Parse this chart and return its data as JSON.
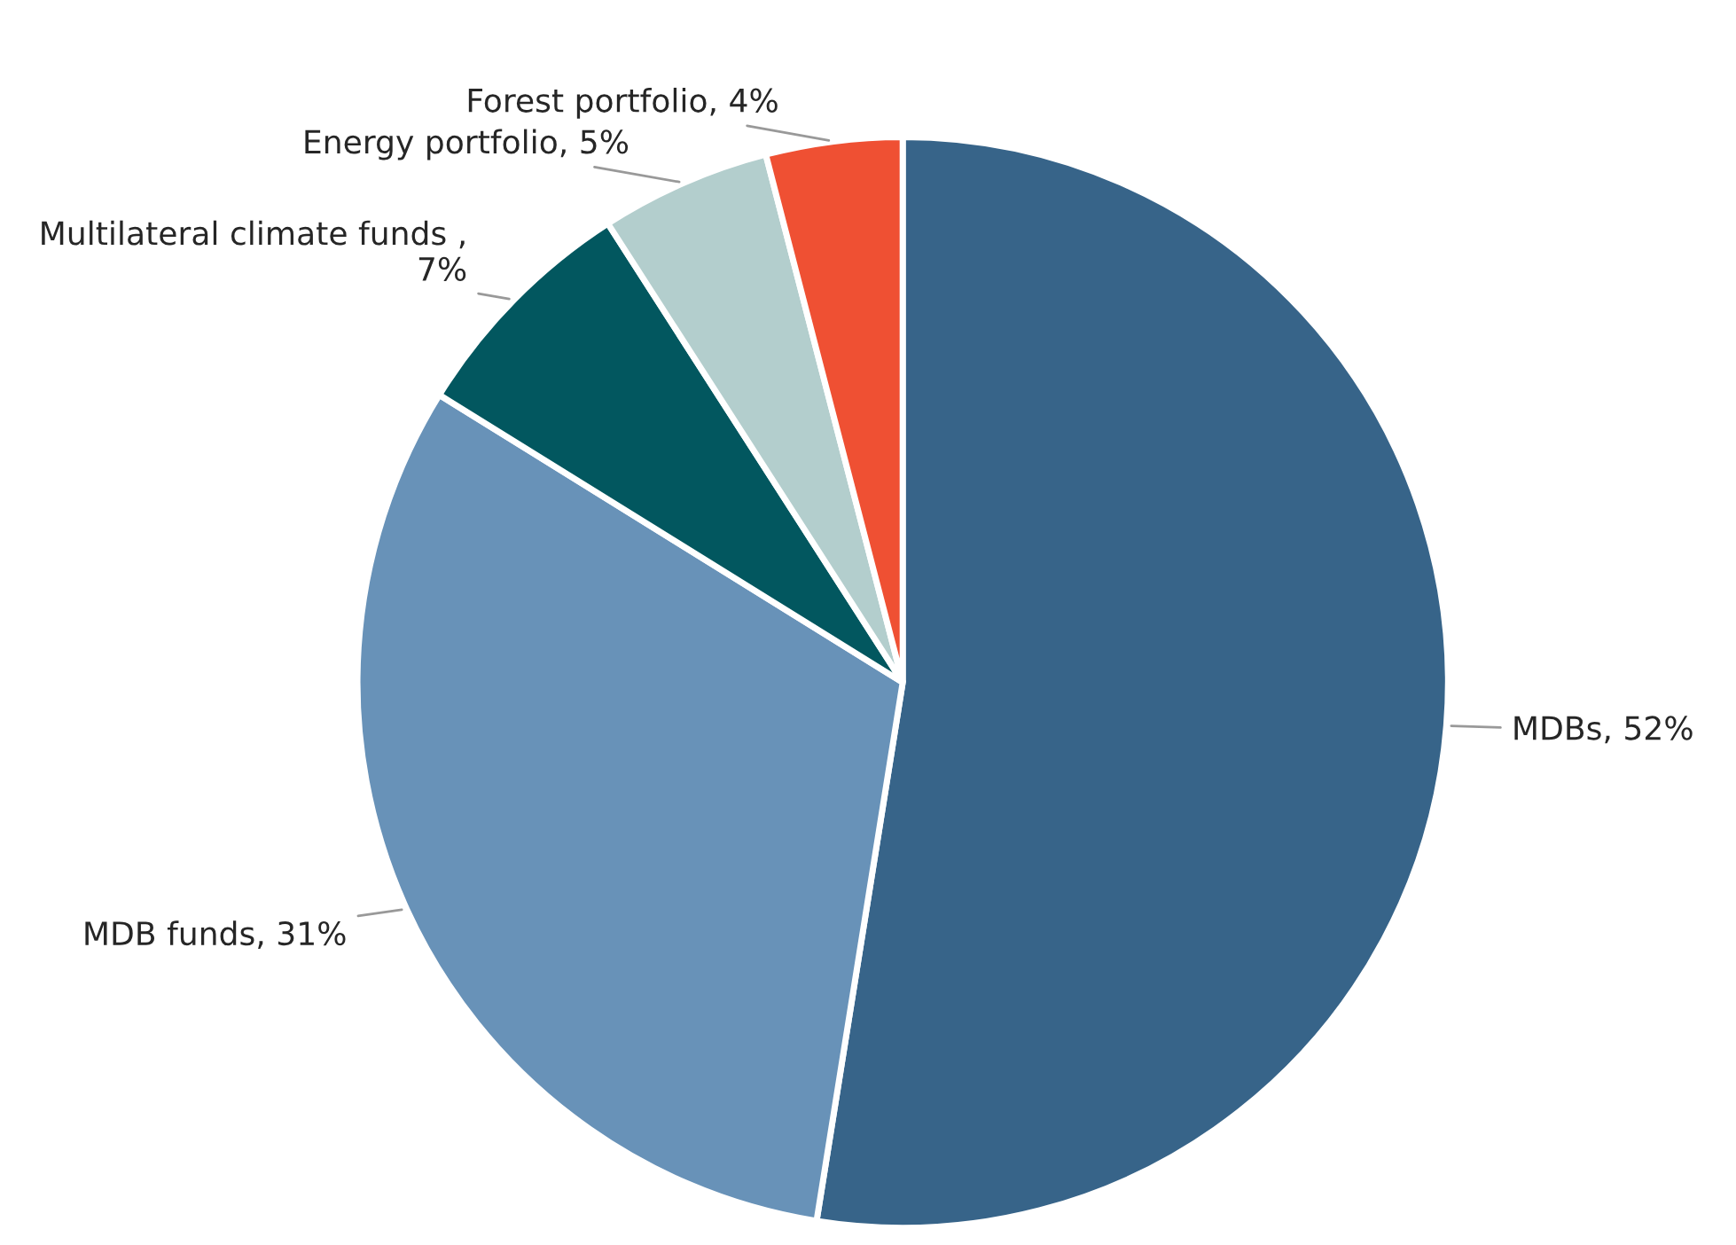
{
  "chart_data": {
    "type": "pie",
    "categories": [
      "MDBs, 52%",
      "MDB funds, 31%",
      "Multilateral climate funds , 7%",
      "Energy portfolio, 5%",
      "Forest portfolio, 4%"
    ],
    "values": [
      52,
      31,
      7,
      5,
      4
    ],
    "colors": [
      "#376489",
      "#6892b8",
      "#02575f",
      "#b3cecd",
      "#ef5033"
    ]
  }
}
